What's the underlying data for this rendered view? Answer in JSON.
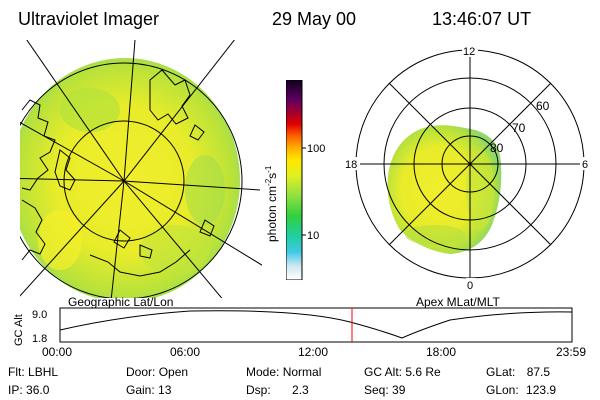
{
  "header": {
    "instrument": "Ultraviolet Imager",
    "date": "29 May 00",
    "time": "13:46:07 UT"
  },
  "left_panel": {
    "label": "Geographic Lat/Lon"
  },
  "right_panel": {
    "label": "Apex MLat/MLT",
    "mlt_labels": [
      "12",
      "18",
      "6",
      "0"
    ],
    "mlat_labels": [
      "60",
      "70",
      "80"
    ]
  },
  "colorbar": {
    "unit_label": "photon cm",
    "unit_sup1": "-2",
    "unit_mid": "s",
    "unit_sup2": "-1",
    "tick_labels": [
      "100",
      "10"
    ],
    "scale": "log"
  },
  "altitude_plot": {
    "ylabel": "GC Alt",
    "yticks": [
      "9.0",
      "1.8"
    ],
    "xticks": [
      "00:00",
      "06:00",
      "12:00",
      "18:00",
      "23:59"
    ],
    "marker_color": "#ff0000"
  },
  "info": {
    "row1": [
      {
        "k": "Flt:",
        "v": "LBHL"
      },
      {
        "k": "Door:",
        "v": "Open"
      },
      {
        "k": "Mode:",
        "v": "Normal"
      },
      {
        "k": "GC Alt:",
        "v": "5.6 Re"
      },
      {
        "k": "GLat:",
        "v": "87.5"
      }
    ],
    "row2": [
      {
        "k": "IP:",
        "v": "36.0"
      },
      {
        "k": "Gain:",
        "v": "13"
      },
      {
        "k": "Dsp:",
        "v": "2.3"
      },
      {
        "k": "Seq:",
        "v": "39"
      },
      {
        "k": "GLon:",
        "v": "123.9"
      }
    ]
  }
}
